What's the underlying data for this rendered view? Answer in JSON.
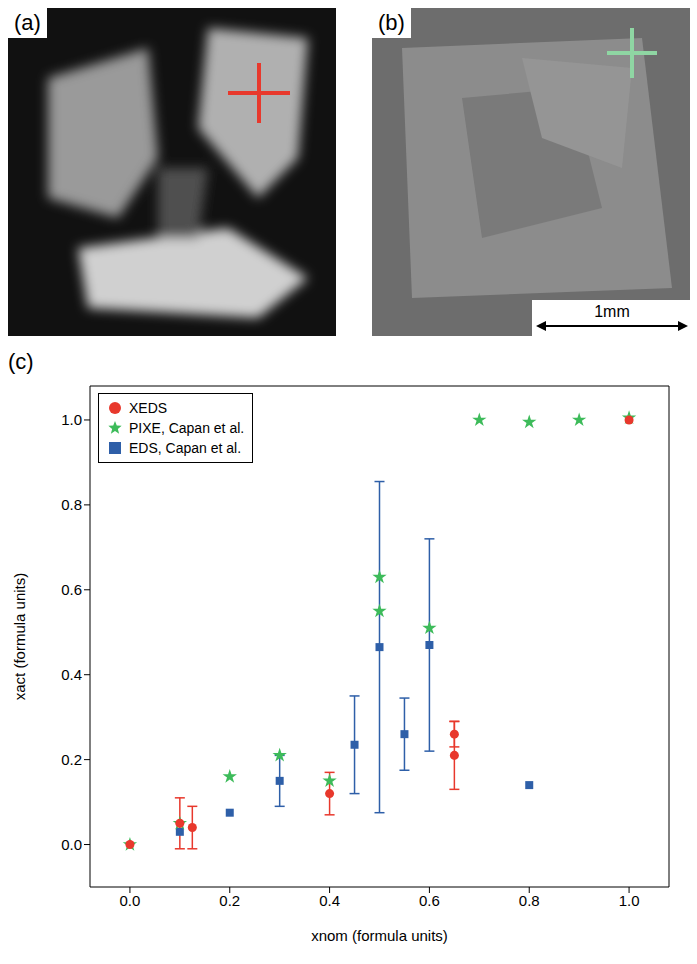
{
  "panels": {
    "a": {
      "label": "(a)"
    },
    "b": {
      "label": "(b)",
      "scale_bar": "1mm"
    },
    "c": {
      "label": "(c)"
    }
  },
  "chart_data": {
    "type": "scatter",
    "x_label": "xnom (formula units)",
    "y_label": "xact (formula units)",
    "xlim": [
      -0.08,
      1.08
    ],
    "ylim": [
      -0.1,
      1.08
    ],
    "xticks": [
      {
        "value": 0,
        "label": "0.0"
      },
      {
        "value": 0.2,
        "label": "0.2"
      },
      {
        "value": 0.4,
        "label": "0.4"
      },
      {
        "value": 0.6,
        "label": "0.6"
      },
      {
        "value": 0.8,
        "label": "0.8"
      },
      {
        "value": 1,
        "label": "1.0"
      }
    ],
    "yticks": [
      {
        "value": 0,
        "label": "0.0"
      },
      {
        "value": 0.2,
        "label": "0.2"
      },
      {
        "value": 0.4,
        "label": "0.4"
      },
      {
        "value": 0.6,
        "label": "0.6"
      },
      {
        "value": 0.8,
        "label": "0.8"
      },
      {
        "value": 1,
        "label": "1.0"
      }
    ],
    "grid": false,
    "legend": "upper left",
    "series": [
      {
        "name": "XEDS",
        "color": "#e8382c",
        "marker": "circle",
        "x": [
          0,
          0.1,
          0.125,
          0.4,
          0.65,
          0.65,
          1.0
        ],
        "values": [
          0,
          0.05,
          0.04,
          0.12,
          0.26,
          0.21,
          1.0
        ],
        "errors": [
          null,
          0.06,
          0.05,
          0.05,
          0.03,
          0.08,
          null
        ]
      },
      {
        "name": "PIXE, Capan et al.",
        "color": "#3dbb5a",
        "marker": "star",
        "x": [
          0,
          0.1,
          0.2,
          0.3,
          0.4,
          0.5,
          0.5,
          0.6,
          0.7,
          0.8,
          0.9,
          1.0
        ],
        "values": [
          0,
          0.05,
          0.16,
          0.21,
          0.15,
          0.63,
          0.55,
          0.51,
          1.0,
          0.995,
          1.0,
          1.005
        ],
        "errors": [
          null,
          null,
          null,
          null,
          null,
          null,
          null,
          null,
          null,
          null,
          null,
          null
        ]
      },
      {
        "name": "EDS, Capan et al.",
        "color": "#2e5fa8",
        "marker": "square",
        "x": [
          0.1,
          0.2,
          0.3,
          0.45,
          0.5,
          0.55,
          0.6,
          0.8
        ],
        "values": [
          0.03,
          0.075,
          0.15,
          0.235,
          0.465,
          0.26,
          0.47,
          0.14
        ],
        "errors": [
          null,
          null,
          0.06,
          0.115,
          0.39,
          0.085,
          0.25,
          null
        ]
      }
    ]
  }
}
